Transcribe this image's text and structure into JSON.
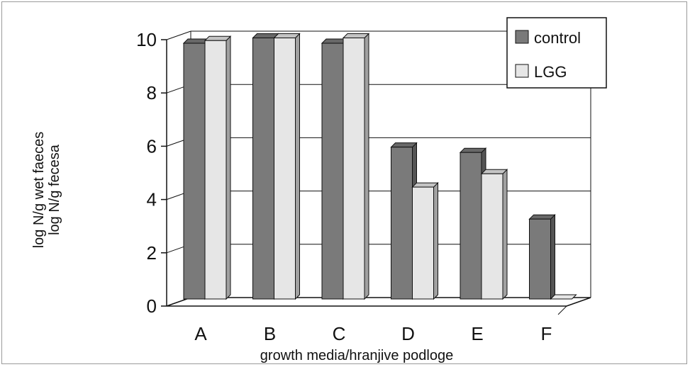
{
  "chart_data": {
    "type": "bar",
    "categories": [
      "A",
      "B",
      "C",
      "D",
      "E",
      "F"
    ],
    "series": [
      {
        "name": "control",
        "values": [
          9.6,
          9.8,
          9.6,
          5.7,
          5.5,
          3.0
        ]
      },
      {
        "name": "LGG",
        "values": [
          9.7,
          9.8,
          9.8,
          4.2,
          4.7,
          0
        ]
      }
    ],
    "xlabel": "growth media/hranjive podloge",
    "ylabel": [
      "log N/g wet faeces",
      "log N/g fecesa"
    ],
    "ylim": [
      0,
      10
    ],
    "yticks": [
      "0",
      "2",
      "4",
      "6",
      "8",
      "10"
    ],
    "grid": true,
    "legend": "top-right",
    "three_d": true,
    "colors": {
      "control": "#7a7a7a",
      "LGG": "#e6e6e6",
      "outline": "#111111",
      "grid": "#111111"
    }
  }
}
